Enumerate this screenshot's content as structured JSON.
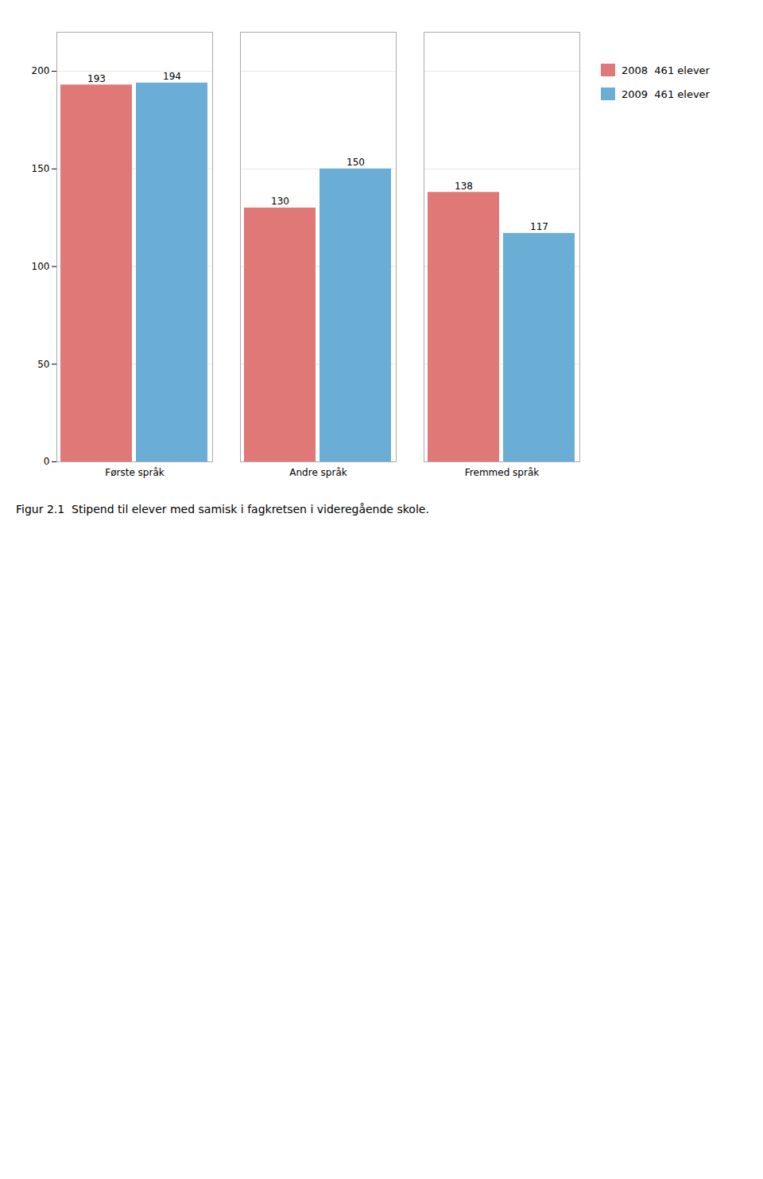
{
  "chart_data": {
    "type": "bar",
    "title": "Figur 2.1  Stipend til elever med samisk i fagkretsen i videregående skole.",
    "categories": [
      "Første språk",
      "Andre språk",
      "Fremmed språk"
    ],
    "series": [
      {
        "name": "2008  461 elever",
        "color": "#e07878",
        "values": [
          193,
          130,
          138
        ]
      },
      {
        "name": "2009  461 elever",
        "color": "#6aaed6",
        "values": [
          194,
          150,
          117
        ]
      }
    ],
    "ylim": [
      0,
      220
    ],
    "yticks": [
      0,
      50,
      100,
      150,
      200
    ],
    "grid": true,
    "data_labels": true,
    "legend": "right"
  }
}
